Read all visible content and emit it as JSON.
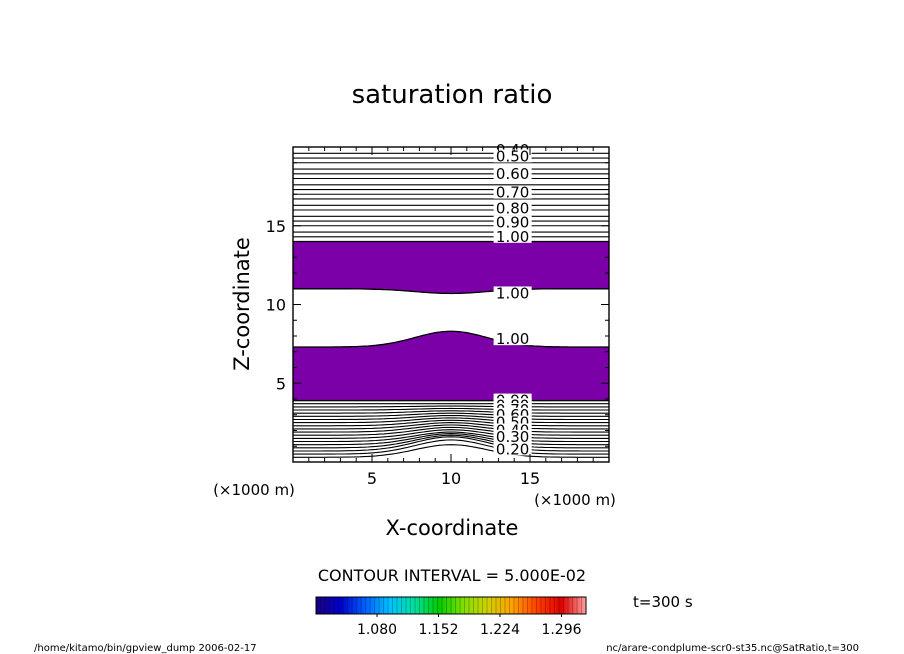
{
  "chart_data": {
    "type": "contour",
    "title": "saturation ratio",
    "xlabel": "X-coordinate",
    "ylabel": "Z-coordinate",
    "x_unit": "(×1000 m)",
    "z_unit": "(×1000 m)",
    "xlim": [
      0,
      20
    ],
    "zlim": [
      0,
      20
    ],
    "x_ticks": [
      5,
      10,
      15
    ],
    "z_ticks": [
      5,
      10,
      15
    ],
    "contour_interval": "CONTOUR INTERVAL = 5.000E-02",
    "time_label": "t=300 s",
    "colorbar": {
      "tick_labels": [
        "1.080",
        "1.152",
        "1.224",
        "1.296"
      ],
      "colors": [
        "#1a0080",
        "#0000cc",
        "#0060ff",
        "#00c0ff",
        "#00e0a0",
        "#00cc00",
        "#80e000",
        "#d0d000",
        "#ffa000",
        "#ff4000",
        "#e00000",
        "#ffa0a0"
      ]
    },
    "shaded_color": "#7b00a8",
    "shaded_regions": [
      {
        "z_bottom": 3.9,
        "z_top_edge": 7.3,
        "z_top_peak": 8.3,
        "description": "saturation > 1.00"
      },
      {
        "z_bottom_edge": 11.0,
        "z_bottom_center": 10.7,
        "z_top": 14.0,
        "description": "saturation > 1.00"
      }
    ],
    "contour_labels": [
      {
        "value": "0.40",
        "z": 19.8
      },
      {
        "value": "0.50",
        "z": 19.4
      },
      {
        "value": "0.60",
        "z": 18.3
      },
      {
        "value": "0.70",
        "z": 17.1
      },
      {
        "value": "0.80",
        "z": 16.1
      },
      {
        "value": "0.90",
        "z": 15.2
      },
      {
        "value": "1.00",
        "z": 14.3
      },
      {
        "value": "1.00",
        "z": 10.7
      },
      {
        "value": "1.00",
        "z": 7.8
      },
      {
        "value": "0.90",
        "z": 3.9
      },
      {
        "value": "0.80",
        "z": 3.6
      },
      {
        "value": "0.70",
        "z": 3.3
      },
      {
        "value": "0.60",
        "z": 3.0
      },
      {
        "value": "0.50",
        "z": 2.5
      },
      {
        "value": "0.40",
        "z": 2.0
      },
      {
        "value": "0.30",
        "z": 1.6
      },
      {
        "value": "0.20",
        "z": 0.8
      }
    ],
    "upper_contour_levels_z": [
      19.6,
      19.3,
      19.0,
      18.6,
      18.3,
      18.0,
      17.6,
      17.3,
      17.0,
      16.7,
      16.3,
      16.0,
      15.6,
      15.3,
      15.0,
      14.6,
      14.3,
      14.0
    ],
    "lower_contour_levels": [
      {
        "z_edge": 3.9,
        "bump": 0.0
      },
      {
        "z_edge": 3.7,
        "bump": 0.0
      },
      {
        "z_edge": 3.5,
        "bump": 0.05
      },
      {
        "z_edge": 3.3,
        "bump": 0.1
      },
      {
        "z_edge": 3.1,
        "bump": 0.15
      },
      {
        "z_edge": 2.9,
        "bump": 0.2
      },
      {
        "z_edge": 2.7,
        "bump": 0.25
      },
      {
        "z_edge": 2.5,
        "bump": 0.3
      },
      {
        "z_edge": 2.3,
        "bump": 0.35
      },
      {
        "z_edge": 2.1,
        "bump": 0.4
      },
      {
        "z_edge": 1.9,
        "bump": 0.45
      },
      {
        "z_edge": 1.7,
        "bump": 0.5
      },
      {
        "z_edge": 1.5,
        "bump": 0.55
      },
      {
        "z_edge": 1.3,
        "bump": 0.6
      },
      {
        "z_edge": 1.1,
        "bump": 0.7
      },
      {
        "z_edge": 0.9,
        "bump": 0.8
      },
      {
        "z_edge": 0.7,
        "bump": 0.9
      },
      {
        "z_edge": 0.5,
        "bump": 0.9
      },
      {
        "z_edge": 0.3,
        "bump": 0.8
      }
    ]
  },
  "footer": {
    "left": "/home/kitamo/bin/gpview_dump  2006-02-17",
    "right": "nc/arare-condplume-scr0-st35.nc@SatRatio,t=300"
  }
}
